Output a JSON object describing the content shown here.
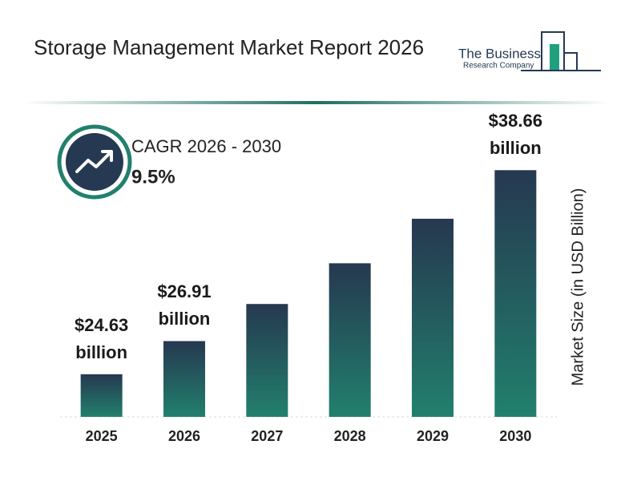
{
  "header": {
    "title": "Storage Management Market Report 2026",
    "logo_line1": "The Business",
    "logo_line2": "Research Company"
  },
  "cagr": {
    "label": "CAGR 2026 - 2030",
    "value": "9.5%"
  },
  "chart_data": {
    "type": "bar",
    "categories": [
      "2025",
      "2026",
      "2027",
      "2028",
      "2029",
      "2030"
    ],
    "values": [
      24.63,
      26.91,
      29.46,
      32.26,
      35.32,
      38.66
    ],
    "value_labels": [
      "$24.63 billion",
      "$26.91 billion",
      null,
      null,
      null,
      "$38.66 billion"
    ],
    "colors": [
      "#263850",
      "#21806d"
    ],
    "ylabel": "Market Size (in USD Billion)",
    "ylim": [
      21.7,
      41.1
    ]
  }
}
